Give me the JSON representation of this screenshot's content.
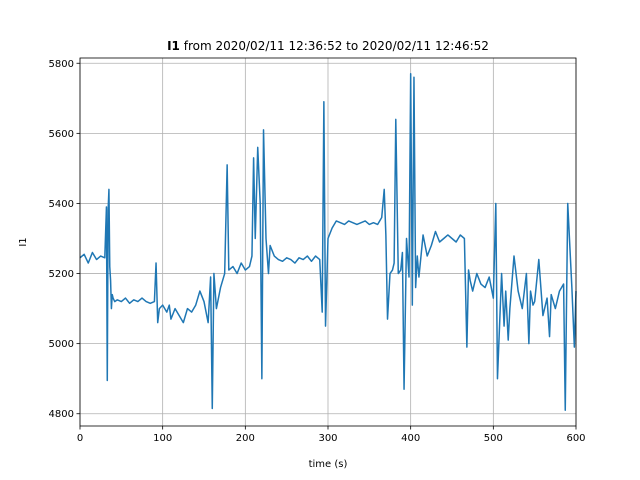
{
  "chart_data": {
    "type": "line",
    "title_bold": "I1",
    "title_rest": " from 2020/02/11 12:36:52 to 2020/02/11 12:46:52",
    "xlabel": "time (s)",
    "ylabel": "I1",
    "xlim": [
      0,
      600
    ],
    "ylim": [
      4765,
      5815
    ],
    "xticks": [
      0,
      100,
      200,
      300,
      400,
      500,
      600
    ],
    "yticks": [
      4800,
      5000,
      5200,
      5400,
      5600,
      5800
    ],
    "grid": true,
    "line_color": "#1f77b4",
    "series": [
      {
        "x": [
          0,
          5,
          10,
          15,
          20,
          25,
          30,
          32,
          33,
          34,
          35,
          36,
          37,
          38,
          39,
          40,
          42,
          45,
          50,
          55,
          60,
          65,
          70,
          75,
          80,
          85,
          90,
          92,
          94,
          96,
          100,
          105,
          108,
          110,
          115,
          120,
          125,
          130,
          135,
          140,
          145,
          150,
          155,
          158,
          160,
          162,
          165,
          170,
          175,
          178,
          180,
          185,
          190,
          195,
          200,
          205,
          208,
          210,
          212,
          215,
          218,
          220,
          222,
          225,
          228,
          230,
          235,
          240,
          245,
          250,
          255,
          260,
          265,
          270,
          275,
          280,
          285,
          290,
          293,
          295,
          297,
          300,
          305,
          310,
          315,
          320,
          325,
          330,
          335,
          340,
          345,
          350,
          355,
          360,
          365,
          368,
          370,
          372,
          375,
          378,
          380,
          382,
          385,
          388,
          390,
          392,
          395,
          398,
          400,
          402,
          404,
          406,
          408,
          410,
          415,
          420,
          425,
          430,
          435,
          440,
          445,
          450,
          455,
          460,
          465,
          468,
          470,
          472,
          475,
          480,
          485,
          490,
          495,
          500,
          503,
          505,
          510,
          513,
          515,
          518,
          520,
          525,
          530,
          535,
          540,
          543,
          545,
          548,
          550,
          555,
          560,
          565,
          568,
          570,
          575,
          580,
          585,
          587,
          590,
          595,
          598,
          600
        ],
        "values": [
          5245,
          5255,
          5230,
          5260,
          5240,
          5250,
          5245,
          5390,
          4895,
          5380,
          5440,
          5220,
          5180,
          5100,
          5140,
          5130,
          5120,
          5125,
          5120,
          5130,
          5115,
          5125,
          5120,
          5130,
          5120,
          5115,
          5120,
          5230,
          5060,
          5100,
          5110,
          5090,
          5110,
          5070,
          5100,
          5080,
          5060,
          5100,
          5090,
          5110,
          5150,
          5120,
          5060,
          5190,
          4815,
          5200,
          5100,
          5160,
          5200,
          5510,
          5210,
          5220,
          5200,
          5230,
          5210,
          5220,
          5250,
          5530,
          5300,
          5560,
          5400,
          4900,
          5610,
          5300,
          5200,
          5280,
          5250,
          5240,
          5235,
          5245,
          5240,
          5230,
          5245,
          5240,
          5250,
          5235,
          5250,
          5240,
          5090,
          5690,
          5050,
          5300,
          5330,
          5350,
          5345,
          5340,
          5350,
          5345,
          5340,
          5345,
          5350,
          5340,
          5345,
          5340,
          5360,
          5440,
          5310,
          5070,
          5200,
          5210,
          5230,
          5640,
          5200,
          5210,
          5260,
          4870,
          5300,
          5190,
          5770,
          5110,
          5760,
          5160,
          5250,
          5190,
          5310,
          5250,
          5280,
          5320,
          5290,
          5300,
          5310,
          5300,
          5290,
          5310,
          5300,
          4990,
          5210,
          5180,
          5150,
          5200,
          5170,
          5160,
          5190,
          5130,
          5400,
          4900,
          5200,
          5050,
          5150,
          5010,
          5100,
          5250,
          5150,
          5100,
          5200,
          5000,
          5150,
          5110,
          5120,
          5240,
          5080,
          5130,
          5020,
          5140,
          5100,
          5150,
          5170,
          4810,
          5400,
          5160,
          4990,
          5150
        ]
      }
    ]
  }
}
